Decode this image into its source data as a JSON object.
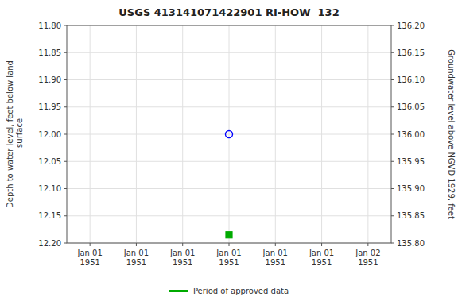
{
  "chart_data": {
    "type": "scatter",
    "title": "USGS 413141071422901 RI-HOW  132",
    "y_label": "Depth to water level, feet below land\n surface",
    "y2_label": "Groundwater level above NGVD 1929, feet",
    "categories": [
      "Jan 01\n1951",
      "Jan 01\n1951",
      "Jan 01\n1951",
      "Jan 01\n1951",
      "Jan 01\n1951",
      "Jan 01\n1951",
      "Jan 02\n1951"
    ],
    "series": [
      {
        "color": "blue",
        "marker": "circle-open",
        "values": [
          null,
          null,
          null,
          12.0,
          null,
          null,
          null
        ]
      },
      {
        "name": "Period of approved data",
        "color": "#00aa00",
        "marker": "square",
        "values": [
          null,
          null,
          null,
          12.185,
          null,
          null,
          null
        ]
      }
    ],
    "ylim": [
      12.2,
      11.8
    ],
    "yticks": [
      {
        "value": 11.8,
        "label": "11.80"
      },
      11.85,
      {
        "value": 11.9,
        "label": "11.90"
      },
      11.95,
      {
        "value": 12.0,
        "label": "12.00"
      },
      12.05,
      {
        "value": 12.1,
        "label": "12.10"
      },
      12.15,
      {
        "value": 12.2,
        "label": "12.20"
      }
    ],
    "y2lim": [
      135.8,
      136.2
    ],
    "y2ticks": [
      {
        "value": 135.8,
        "label": "135.80"
      },
      135.85,
      {
        "value": 135.9,
        "label": "135.90"
      },
      135.95,
      {
        "value": 136.0,
        "label": "136.00"
      },
      136.05,
      {
        "value": 136.1,
        "label": "136.10"
      },
      136.15,
      {
        "value": 136.2,
        "label": "136.20"
      }
    ],
    "grid": true,
    "legend": "bottom"
  }
}
